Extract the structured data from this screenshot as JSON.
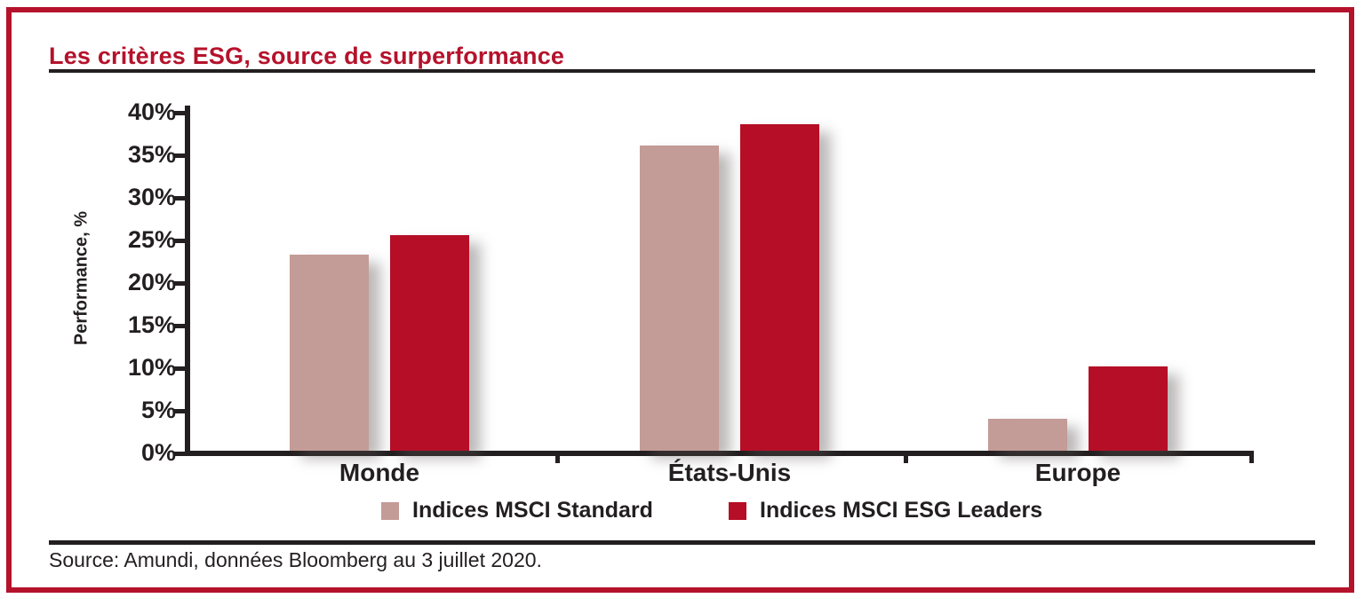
{
  "title": "Les critères ESG, source de surperformance",
  "source": "Source: Amundi, données Bloomberg au 3 juillet 2020.",
  "colors": {
    "accent_red": "#b5122b",
    "bar_standard": "#c39b97",
    "bar_esg_leaders": "#b60e26",
    "line_black": "#231f20"
  },
  "chart_data": {
    "type": "bar",
    "categories": [
      "Monde",
      "États-Unis",
      "Europe"
    ],
    "series": [
      {
        "name": "Indices MSCI Standard",
        "color": "#c39b97",
        "values": [
          23.0,
          35.8,
          3.8
        ]
      },
      {
        "name": "Indices MSCI ESG Leaders",
        "color": "#b60e26",
        "values": [
          25.3,
          38.3,
          9.9
        ]
      }
    ],
    "title": "Les critères ESG, source de surperformance",
    "xlabel": "",
    "ylabel": "Performance, %",
    "ylim": [
      0,
      40
    ],
    "ytick_step": 5,
    "ytick_suffix": "%",
    "grid": false,
    "legend_position": "bottom"
  }
}
